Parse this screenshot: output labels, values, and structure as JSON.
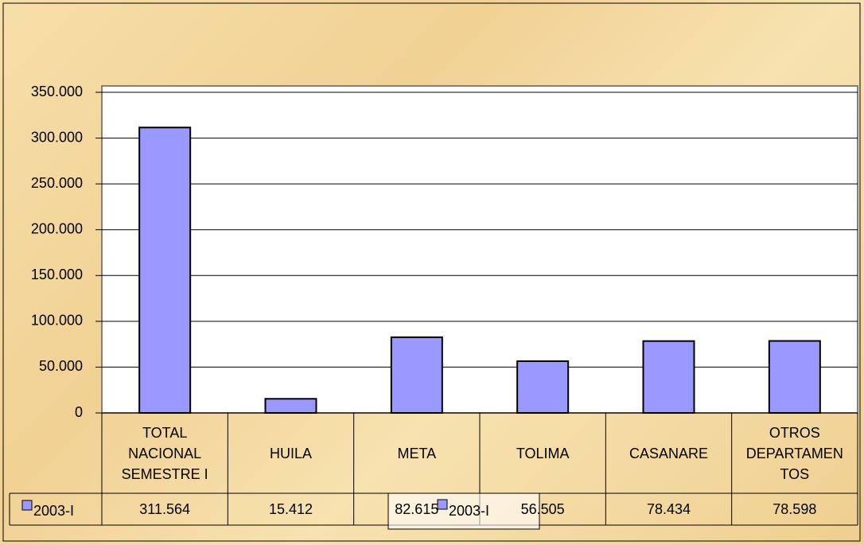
{
  "chart_data": {
    "type": "bar",
    "categories": [
      "TOTAL NACIONAL SEMESTRE I",
      "HUILA",
      "META",
      "TOLIMA",
      "CASANARE",
      "OTROS DEPARTAMENTOS"
    ],
    "series": [
      {
        "name": "2003-I",
        "color": "#9999ff",
        "values": [
          311564,
          15412,
          82615,
          56505,
          78434,
          78598
        ],
        "value_labels": [
          "311.564",
          "15.412",
          "82.615",
          "56.505",
          "78.434",
          "78.598"
        ]
      }
    ],
    "ylim": [
      0,
      350000
    ],
    "yticks": [
      0,
      {
        "value": 50000,
        "label": "50.000"
      },
      {
        "value": 100000,
        "label": "100.000"
      },
      {
        "value": 150000,
        "label": "150.000"
      },
      {
        "value": 200000,
        "label": "200.000"
      },
      {
        "value": 250000,
        "label": "250.000"
      },
      {
        "value": 300000,
        "label": "300.000"
      },
      {
        "value": 350000,
        "label": "350.000"
      }
    ],
    "grid": true,
    "data_table": true
  }
}
